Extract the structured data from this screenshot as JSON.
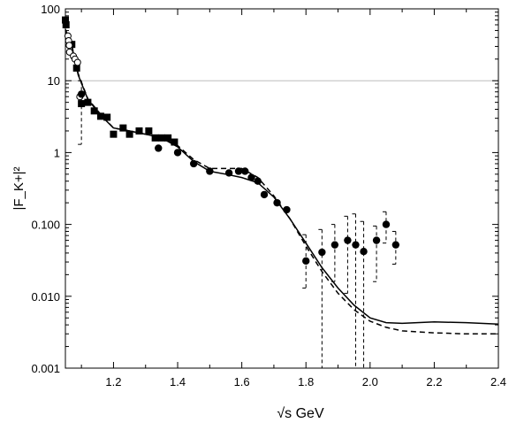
{
  "chart_data": {
    "type": "scatter",
    "title": "",
    "xlabel": "√s GeV",
    "ylabel": "|F_K+|²",
    "xlim": [
      1.05,
      2.4
    ],
    "ylim": [
      0.001,
      100
    ],
    "yscale": "log",
    "grid": "horizontal line at y = 10",
    "x_ticks": [
      1.2,
      1.4,
      1.6,
      1.8,
      2.0,
      2.2,
      2.4
    ],
    "x_tick_labels": [
      "1.2",
      "1.4",
      "1.6",
      "1.8",
      "2.0",
      "2.2",
      "2.4"
    ],
    "y_ticks": [
      0.001,
      0.01,
      0.1,
      1,
      10,
      100
    ],
    "y_tick_labels": [
      "0.001",
      "0.010",
      "0.100",
      "1",
      "10",
      "100"
    ],
    "series": [
      {
        "marker": "filled-square",
        "points": [
          {
            "x": 1.05,
            "y": 70
          },
          {
            "x": 1.052,
            "y": 60
          },
          {
            "x": 1.07,
            "y": 32
          },
          {
            "x": 1.085,
            "y": 15
          },
          {
            "x": 1.1,
            "y": 4.8
          },
          {
            "x": 1.12,
            "y": 5.0
          },
          {
            "x": 1.14,
            "y": 3.8
          },
          {
            "x": 1.16,
            "y": 3.2
          },
          {
            "x": 1.18,
            "y": 3.1
          },
          {
            "x": 1.2,
            "y": 1.8
          },
          {
            "x": 1.23,
            "y": 2.2
          },
          {
            "x": 1.25,
            "y": 1.8
          },
          {
            "x": 1.28,
            "y": 2.0
          },
          {
            "x": 1.31,
            "y": 2.0
          },
          {
            "x": 1.33,
            "y": 1.6
          },
          {
            "x": 1.35,
            "y": 1.6
          },
          {
            "x": 1.37,
            "y": 1.6
          },
          {
            "x": 1.39,
            "y": 1.4
          }
        ]
      },
      {
        "marker": "open-circle",
        "points": [
          {
            "x": 1.058,
            "y": 42
          },
          {
            "x": 1.06,
            "y": 36
          },
          {
            "x": 1.062,
            "y": 31
          },
          {
            "x": 1.063,
            "y": 25
          },
          {
            "x": 1.075,
            "y": 22
          },
          {
            "x": 1.08,
            "y": 20
          },
          {
            "x": 1.088,
            "y": 18
          },
          {
            "x": 1.095,
            "y": 6
          }
        ]
      },
      {
        "marker": "filled-circle",
        "points": [
          {
            "x": 1.1,
            "y": 6.5,
            "lo": 1.3,
            "hi": 10
          },
          {
            "x": 1.34,
            "y": 1.15
          },
          {
            "x": 1.4,
            "y": 1.0
          },
          {
            "x": 1.45,
            "y": 0.7
          },
          {
            "x": 1.5,
            "y": 0.55
          },
          {
            "x": 1.56,
            "y": 0.52
          },
          {
            "x": 1.59,
            "y": 0.55
          },
          {
            "x": 1.61,
            "y": 0.55
          },
          {
            "x": 1.63,
            "y": 0.45
          },
          {
            "x": 1.65,
            "y": 0.4
          },
          {
            "x": 1.67,
            "y": 0.26
          },
          {
            "x": 1.71,
            "y": 0.2
          },
          {
            "x": 1.74,
            "y": 0.16
          },
          {
            "x": 1.8,
            "y": 0.031,
            "lo": 0.013,
            "hi": 0.072
          },
          {
            "x": 1.85,
            "y": 0.041,
            "lo": 0.0009,
            "hi": 0.085
          },
          {
            "x": 1.89,
            "y": 0.052,
            "lo": 0.016,
            "hi": 0.1
          },
          {
            "x": 1.93,
            "y": 0.06,
            "lo": 0.011,
            "hi": 0.13
          },
          {
            "x": 1.955,
            "y": 0.052,
            "lo": 0.0009,
            "hi": 0.14
          },
          {
            "x": 1.98,
            "y": 0.042,
            "lo": 0.0009,
            "hi": 0.11
          },
          {
            "x": 2.02,
            "y": 0.06,
            "lo": 0.016,
            "hi": 0.095
          },
          {
            "x": 2.05,
            "y": 0.1,
            "lo": 0.055,
            "hi": 0.15
          },
          {
            "x": 2.08,
            "y": 0.052,
            "lo": 0.028,
            "hi": 0.08
          }
        ]
      },
      {
        "line": "solid",
        "points": [
          [
            1.05,
            50
          ],
          [
            1.07,
            30
          ],
          [
            1.09,
            12
          ],
          [
            1.12,
            5.5
          ],
          [
            1.16,
            3.3
          ],
          [
            1.2,
            2.2
          ],
          [
            1.25,
            2.0
          ],
          [
            1.3,
            1.8
          ],
          [
            1.35,
            1.6
          ],
          [
            1.4,
            1.2
          ],
          [
            1.45,
            0.75
          ],
          [
            1.5,
            0.55
          ],
          [
            1.55,
            0.5
          ],
          [
            1.6,
            0.45
          ],
          [
            1.65,
            0.38
          ],
          [
            1.7,
            0.24
          ],
          [
            1.75,
            0.12
          ],
          [
            1.8,
            0.055
          ],
          [
            1.85,
            0.025
          ],
          [
            1.9,
            0.013
          ],
          [
            1.95,
            0.0075
          ],
          [
            2.0,
            0.005
          ],
          [
            2.05,
            0.0043
          ],
          [
            2.1,
            0.0042
          ],
          [
            2.2,
            0.0044
          ],
          [
            2.3,
            0.0043
          ],
          [
            2.4,
            0.0041
          ]
        ]
      },
      {
        "line": "dashed",
        "points": [
          [
            1.05,
            52
          ],
          [
            1.07,
            31
          ],
          [
            1.09,
            12.5
          ],
          [
            1.12,
            5.6
          ],
          [
            1.16,
            3.4
          ],
          [
            1.2,
            2.2
          ],
          [
            1.25,
            2.0
          ],
          [
            1.3,
            1.8
          ],
          [
            1.35,
            1.6
          ],
          [
            1.4,
            1.25
          ],
          [
            1.45,
            0.8
          ],
          [
            1.5,
            0.6
          ],
          [
            1.55,
            0.6
          ],
          [
            1.6,
            0.6
          ],
          [
            1.65,
            0.45
          ],
          [
            1.7,
            0.25
          ],
          [
            1.75,
            0.12
          ],
          [
            1.8,
            0.05
          ],
          [
            1.85,
            0.022
          ],
          [
            1.9,
            0.011
          ],
          [
            1.95,
            0.0065
          ],
          [
            2.0,
            0.0045
          ],
          [
            2.05,
            0.0037
          ],
          [
            2.1,
            0.0033
          ],
          [
            2.2,
            0.0031
          ],
          [
            2.3,
            0.003
          ],
          [
            2.4,
            0.003
          ]
        ]
      }
    ]
  }
}
